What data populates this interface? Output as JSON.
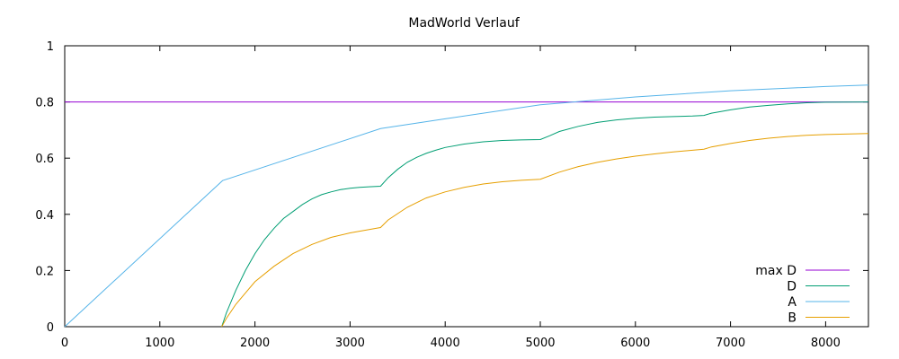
{
  "chart_data": {
    "type": "line",
    "title": "MadWorld Verlauf",
    "xlabel": "",
    "ylabel": "",
    "xlim": [
      0,
      8450
    ],
    "ylim": [
      0,
      1
    ],
    "xticks": [
      0,
      1000,
      2000,
      3000,
      4000,
      5000,
      6000,
      7000,
      8000
    ],
    "yticks": [
      0,
      0.2,
      0.4,
      0.6,
      0.8,
      1
    ],
    "ytick_labels": [
      "0",
      "0.2",
      "0.4",
      "0.6",
      "0.8",
      "1"
    ],
    "grid": false,
    "legend_position": "bottom-right",
    "series": [
      {
        "name": "max D",
        "color": "#9400d3",
        "points": [
          [
            0,
            0.8
          ],
          [
            8450,
            0.8
          ]
        ]
      },
      {
        "name": "D",
        "color": "#009e73",
        "points": [
          [
            1650,
            0.0
          ],
          [
            1700,
            0.05
          ],
          [
            1800,
            0.13
          ],
          [
            1900,
            0.2
          ],
          [
            2000,
            0.26
          ],
          [
            2100,
            0.31
          ],
          [
            2200,
            0.35
          ],
          [
            2300,
            0.385
          ],
          [
            2400,
            0.41
          ],
          [
            2500,
            0.435
          ],
          [
            2600,
            0.455
          ],
          [
            2700,
            0.47
          ],
          [
            2800,
            0.48
          ],
          [
            2900,
            0.488
          ],
          [
            3000,
            0.493
          ],
          [
            3100,
            0.496
          ],
          [
            3200,
            0.498
          ],
          [
            3320,
            0.5
          ],
          [
            3400,
            0.53
          ],
          [
            3500,
            0.56
          ],
          [
            3600,
            0.585
          ],
          [
            3700,
            0.603
          ],
          [
            3800,
            0.617
          ],
          [
            3900,
            0.628
          ],
          [
            4000,
            0.638
          ],
          [
            4200,
            0.65
          ],
          [
            4400,
            0.658
          ],
          [
            4600,
            0.663
          ],
          [
            4800,
            0.665
          ],
          [
            5000,
            0.666
          ],
          [
            5100,
            0.68
          ],
          [
            5200,
            0.695
          ],
          [
            5400,
            0.713
          ],
          [
            5600,
            0.727
          ],
          [
            5800,
            0.736
          ],
          [
            6000,
            0.742
          ],
          [
            6200,
            0.746
          ],
          [
            6400,
            0.748
          ],
          [
            6600,
            0.75
          ],
          [
            6720,
            0.752
          ],
          [
            6800,
            0.76
          ],
          [
            7000,
            0.772
          ],
          [
            7200,
            0.782
          ],
          [
            7400,
            0.788
          ],
          [
            7600,
            0.793
          ],
          [
            7800,
            0.797
          ],
          [
            8000,
            0.799
          ],
          [
            8450,
            0.8
          ]
        ]
      },
      {
        "name": "A",
        "color": "#56b4e9",
        "points": [
          [
            0,
            0.0
          ],
          [
            1660,
            0.52
          ],
          [
            3320,
            0.705
          ],
          [
            4000,
            0.74
          ],
          [
            5000,
            0.79
          ],
          [
            6000,
            0.818
          ],
          [
            7000,
            0.84
          ],
          [
            8000,
            0.855
          ],
          [
            8450,
            0.86
          ]
        ]
      },
      {
        "name": "B",
        "color": "#e69f00",
        "points": [
          [
            1650,
            0.0
          ],
          [
            1700,
            0.03
          ],
          [
            1800,
            0.08
          ],
          [
            1900,
            0.12
          ],
          [
            2000,
            0.16
          ],
          [
            2200,
            0.215
          ],
          [
            2400,
            0.26
          ],
          [
            2600,
            0.293
          ],
          [
            2800,
            0.318
          ],
          [
            3000,
            0.334
          ],
          [
            3200,
            0.346
          ],
          [
            3320,
            0.353
          ],
          [
            3400,
            0.38
          ],
          [
            3600,
            0.425
          ],
          [
            3800,
            0.458
          ],
          [
            4000,
            0.48
          ],
          [
            4200,
            0.496
          ],
          [
            4400,
            0.508
          ],
          [
            4600,
            0.516
          ],
          [
            4800,
            0.521
          ],
          [
            5000,
            0.525
          ],
          [
            5200,
            0.55
          ],
          [
            5400,
            0.57
          ],
          [
            5600,
            0.585
          ],
          [
            5800,
            0.597
          ],
          [
            6000,
            0.607
          ],
          [
            6200,
            0.615
          ],
          [
            6400,
            0.622
          ],
          [
            6600,
            0.628
          ],
          [
            6720,
            0.632
          ],
          [
            6800,
            0.64
          ],
          [
            7000,
            0.652
          ],
          [
            7200,
            0.663
          ],
          [
            7400,
            0.671
          ],
          [
            7600,
            0.677
          ],
          [
            7800,
            0.681
          ],
          [
            8000,
            0.684
          ],
          [
            8450,
            0.688
          ]
        ]
      }
    ]
  }
}
